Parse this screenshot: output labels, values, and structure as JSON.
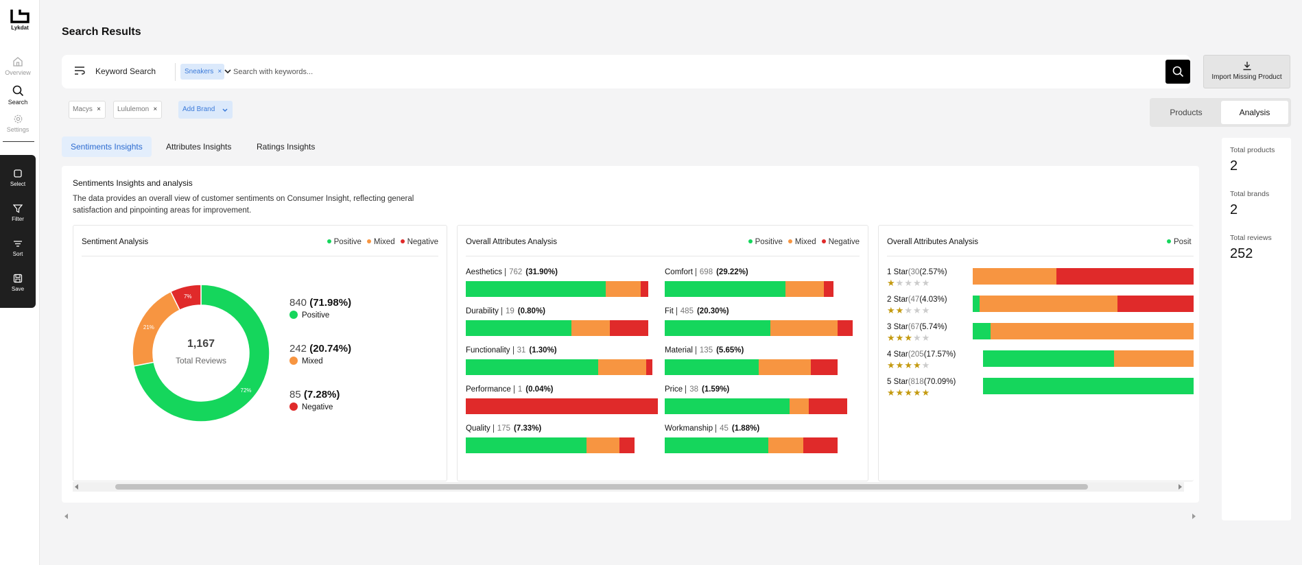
{
  "app": {
    "brand": "Lykdat"
  },
  "sidebar": {
    "nav": [
      {
        "label": "Overview"
      },
      {
        "label": "Search"
      },
      {
        "label": "Settings"
      }
    ],
    "tools": [
      {
        "label": "Select"
      },
      {
        "label": "Filter"
      },
      {
        "label": "Sort"
      },
      {
        "label": "Save"
      }
    ]
  },
  "header": {
    "title": "Search Results"
  },
  "search": {
    "mode_label": "Keyword Search",
    "keyword_chip": "Sneakers",
    "placeholder": "Search with keywords...",
    "import_label": "Import Missing Product"
  },
  "brands": {
    "chips": [
      "Macys",
      "Lululemon"
    ],
    "add_label": "Add Brand"
  },
  "view_toggle": {
    "products": "Products",
    "analysis": "Analysis",
    "active": "analysis"
  },
  "tabs": [
    {
      "label": "Sentiments Insights",
      "active": true
    },
    {
      "label": "Attributes Insights",
      "active": false
    },
    {
      "label": "Ratings Insights",
      "active": false
    }
  ],
  "insights": {
    "title": "Sentiments Insights and analysis",
    "description": "The data provides an overall view of customer sentiments on Consumer Insight, reflecting general satisfaction and pinpointing areas for improvement."
  },
  "legend": {
    "positive": "Positive",
    "mixed": "Mixed",
    "negative": "Negative",
    "partial": "Posit"
  },
  "colors": {
    "positive": "#15d65c",
    "mixed": "#f79541",
    "negative": "#e02a2a"
  },
  "sentiment_panel": {
    "title": "Sentiment Analysis",
    "total": "1,167",
    "total_label": "Total Reviews",
    "slices": [
      {
        "key": "positive",
        "count": "840",
        "pct": "(71.98%)",
        "label": "Positive",
        "donut_label": "72%",
        "value": 71.98
      },
      {
        "key": "mixed",
        "count": "242",
        "pct": "(20.74%)",
        "label": "Mixed",
        "donut_label": "21%",
        "value": 20.74
      },
      {
        "key": "negative",
        "count": "85",
        "pct": "(7.28%)",
        "label": "Negative",
        "donut_label": "7%",
        "value": 7.28
      }
    ]
  },
  "attributes_panel": {
    "title": "Overall Attributes Analysis",
    "items": [
      {
        "name": "Aesthetics",
        "count": "762",
        "pct": "(31.90%)",
        "pos": 0.73,
        "mix": 0.18,
        "neg": 0.04
      },
      {
        "name": "Comfort",
        "count": "698",
        "pct": "(29.22%)",
        "pos": 0.63,
        "mix": 0.2,
        "neg": 0.05
      },
      {
        "name": "Durability",
        "count": "19",
        "pct": "(0.80%)",
        "pos": 0.55,
        "mix": 0.2,
        "neg": 0.2
      },
      {
        "name": "Fit",
        "count": "485",
        "pct": "(20.30%)",
        "pos": 0.55,
        "mix": 0.35,
        "neg": 0.08
      },
      {
        "name": "Functionality",
        "count": "31",
        "pct": "(1.30%)",
        "pos": 0.69,
        "mix": 0.25,
        "neg": 0.03
      },
      {
        "name": "Material",
        "count": "135",
        "pct": "(5.65%)",
        "pos": 0.49,
        "mix": 0.27,
        "neg": 0.14
      },
      {
        "name": "Performance",
        "count": "1",
        "pct": "(0.04%)",
        "pos": 0.0,
        "mix": 0.0,
        "neg": 1.0
      },
      {
        "name": "Price",
        "count": "38",
        "pct": "(1.59%)",
        "pos": 0.65,
        "mix": 0.1,
        "neg": 0.2
      },
      {
        "name": "Quality",
        "count": "175",
        "pct": "(7.33%)",
        "pos": 0.63,
        "mix": 0.17,
        "neg": 0.08
      },
      {
        "name": "Workmanship",
        "count": "45",
        "pct": "(1.88%)",
        "pos": 0.54,
        "mix": 0.18,
        "neg": 0.18
      }
    ]
  },
  "ratings_panel": {
    "title": "Overall Attributes Analysis",
    "items": [
      {
        "label": "1 Star",
        "count": "(30",
        "pct": "(2.57%)",
        "stars": 1,
        "pos": 0.0,
        "mix": 0.37,
        "neg": 0.63
      },
      {
        "label": "2 Star",
        "count": "(47",
        "pct": "(4.03%)",
        "stars": 2,
        "pos": 0.03,
        "mix": 0.61,
        "neg": 0.36
      },
      {
        "label": "3 Star",
        "count": "(67",
        "pct": "(5.74%)",
        "stars": 3,
        "pos": 0.08,
        "mix": 0.92,
        "neg": 0.0
      },
      {
        "label": "4 Star",
        "count": "(205",
        "pct": "(17.57%)",
        "stars": 4,
        "pos": 0.58,
        "mix": 0.42,
        "neg": 0.0
      },
      {
        "label": "5 Star",
        "count": "(818",
        "pct": "(70.09%)",
        "stars": 5,
        "pos": 1.0,
        "mix": 0.0,
        "neg": 0.0
      }
    ]
  },
  "stats": [
    {
      "label": "Total products",
      "value": "2"
    },
    {
      "label": "Total brands",
      "value": "2"
    },
    {
      "label": "Total reviews",
      "value": "252"
    }
  ]
}
